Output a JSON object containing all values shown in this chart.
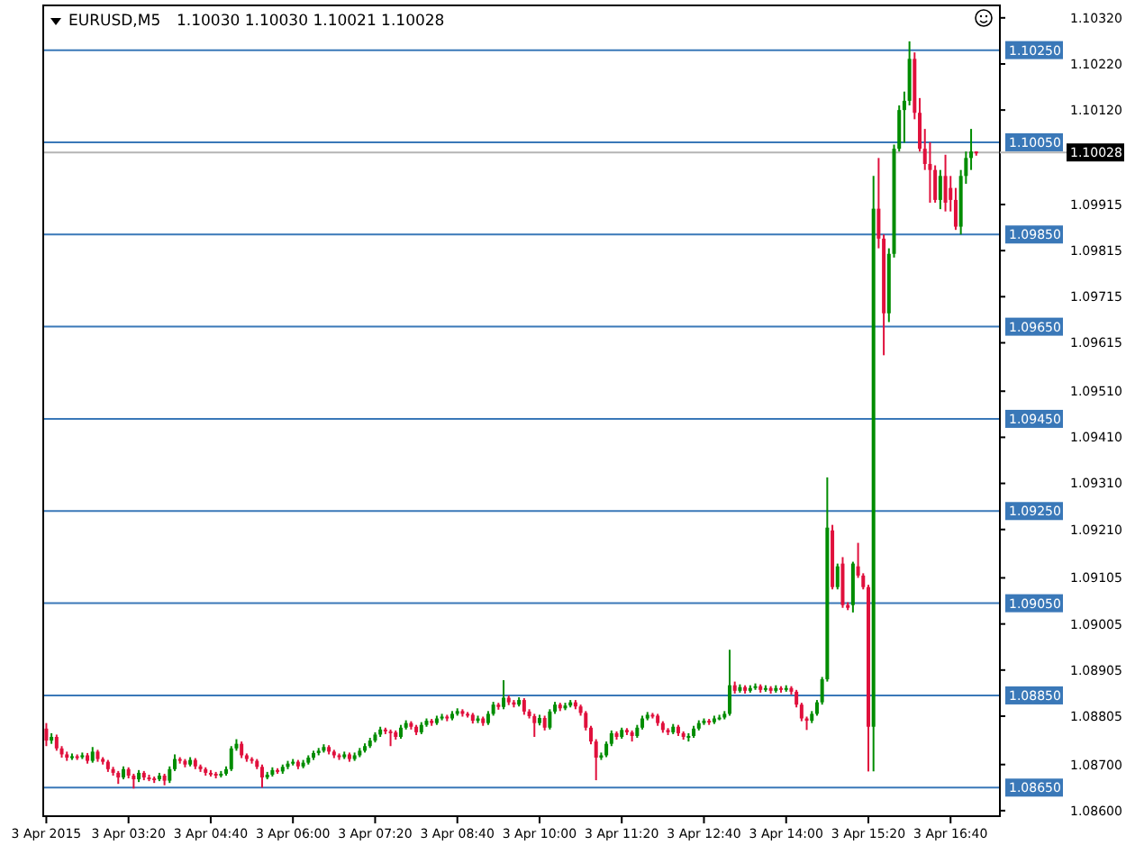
{
  "chart_data": {
    "type": "candlestick",
    "title": "EURUSD,M5",
    "subtitle": "1.10030 1.10030 1.10021 1.10028",
    "x": [
      "2015-04-03T02:00",
      "2015-04-03T02:05",
      "2015-04-03T02:10",
      "2015-04-03T02:15",
      "2015-04-03T02:20",
      "2015-04-03T02:25",
      "2015-04-03T02:30",
      "2015-04-03T02:35",
      "2015-04-03T02:40",
      "2015-04-03T02:45",
      "2015-04-03T02:50",
      "2015-04-03T02:55",
      "2015-04-03T03:00",
      "2015-04-03T03:05",
      "2015-04-03T03:10",
      "2015-04-03T03:15",
      "2015-04-03T03:20",
      "2015-04-03T03:25",
      "2015-04-03T03:30",
      "2015-04-03T03:35",
      "2015-04-03T03:40",
      "2015-04-03T03:45",
      "2015-04-03T03:50",
      "2015-04-03T03:55",
      "2015-04-03T04:00",
      "2015-04-03T04:05",
      "2015-04-03T04:10",
      "2015-04-03T04:15",
      "2015-04-03T04:20",
      "2015-04-03T04:25",
      "2015-04-03T04:30",
      "2015-04-03T04:35",
      "2015-04-03T04:40",
      "2015-04-03T04:45",
      "2015-04-03T04:50",
      "2015-04-03T04:55",
      "2015-04-03T05:00",
      "2015-04-03T05:05",
      "2015-04-03T05:10",
      "2015-04-03T05:15",
      "2015-04-03T05:20",
      "2015-04-03T05:25",
      "2015-04-03T05:30",
      "2015-04-03T05:35",
      "2015-04-03T05:40",
      "2015-04-03T05:45",
      "2015-04-03T05:50",
      "2015-04-03T05:55",
      "2015-04-03T06:00",
      "2015-04-03T06:05",
      "2015-04-03T06:10",
      "2015-04-03T06:15",
      "2015-04-03T06:20",
      "2015-04-03T06:25",
      "2015-04-03T06:30",
      "2015-04-03T06:35",
      "2015-04-03T06:40",
      "2015-04-03T06:45",
      "2015-04-03T06:50",
      "2015-04-03T06:55",
      "2015-04-03T07:00",
      "2015-04-03T07:05",
      "2015-04-03T07:10",
      "2015-04-03T07:15",
      "2015-04-03T07:20",
      "2015-04-03T07:25",
      "2015-04-03T07:30",
      "2015-04-03T07:35",
      "2015-04-03T07:40",
      "2015-04-03T07:45",
      "2015-04-03T07:50",
      "2015-04-03T07:55",
      "2015-04-03T08:00",
      "2015-04-03T08:05",
      "2015-04-03T08:10",
      "2015-04-03T08:15",
      "2015-04-03T08:20",
      "2015-04-03T08:25",
      "2015-04-03T08:30",
      "2015-04-03T08:35",
      "2015-04-03T08:40",
      "2015-04-03T08:45",
      "2015-04-03T08:50",
      "2015-04-03T08:55",
      "2015-04-03T09:00",
      "2015-04-03T09:05",
      "2015-04-03T09:10",
      "2015-04-03T09:15",
      "2015-04-03T09:20",
      "2015-04-03T09:25",
      "2015-04-03T09:30",
      "2015-04-03T09:35",
      "2015-04-03T09:40",
      "2015-04-03T09:45",
      "2015-04-03T09:50",
      "2015-04-03T09:55",
      "2015-04-03T10:00",
      "2015-04-03T10:05",
      "2015-04-03T10:10",
      "2015-04-03T10:15",
      "2015-04-03T10:20",
      "2015-04-03T10:25",
      "2015-04-03T10:30",
      "2015-04-03T10:35",
      "2015-04-03T10:40",
      "2015-04-03T10:45",
      "2015-04-03T10:50",
      "2015-04-03T10:55",
      "2015-04-03T11:00",
      "2015-04-03T11:05",
      "2015-04-03T11:10",
      "2015-04-03T11:15",
      "2015-04-03T11:20",
      "2015-04-03T11:25",
      "2015-04-03T11:30",
      "2015-04-03T11:35",
      "2015-04-03T11:40",
      "2015-04-03T11:45",
      "2015-04-03T11:50",
      "2015-04-03T11:55",
      "2015-04-03T12:00",
      "2015-04-03T12:05",
      "2015-04-03T12:10",
      "2015-04-03T12:15",
      "2015-04-03T12:20",
      "2015-04-03T12:25",
      "2015-04-03T12:30",
      "2015-04-03T12:35",
      "2015-04-03T12:40",
      "2015-04-03T12:45",
      "2015-04-03T12:50",
      "2015-04-03T12:55",
      "2015-04-03T13:00",
      "2015-04-03T13:05",
      "2015-04-03T13:10",
      "2015-04-03T13:15",
      "2015-04-03T13:20",
      "2015-04-03T13:25",
      "2015-04-03T13:30",
      "2015-04-03T13:35",
      "2015-04-03T13:40",
      "2015-04-03T13:45",
      "2015-04-03T13:50",
      "2015-04-03T13:55",
      "2015-04-03T14:00",
      "2015-04-03T14:05",
      "2015-04-03T14:10",
      "2015-04-03T14:15",
      "2015-04-03T14:20",
      "2015-04-03T14:25",
      "2015-04-03T14:30",
      "2015-04-03T14:35",
      "2015-04-03T14:40",
      "2015-04-03T14:45",
      "2015-04-03T14:50",
      "2015-04-03T14:55",
      "2015-04-03T15:00",
      "2015-04-03T15:05",
      "2015-04-03T15:10",
      "2015-04-03T15:15",
      "2015-04-03T15:20",
      "2015-04-03T15:25",
      "2015-04-03T15:30",
      "2015-04-03T15:35",
      "2015-04-03T15:40",
      "2015-04-03T15:45",
      "2015-04-03T15:50",
      "2015-04-03T15:55",
      "2015-04-03T16:00",
      "2015-04-03T16:05",
      "2015-04-03T16:10",
      "2015-04-03T16:15",
      "2015-04-03T16:20",
      "2015-04-03T16:25",
      "2015-04-03T16:30",
      "2015-04-03T16:35",
      "2015-04-03T16:40",
      "2015-04-03T16:45",
      "2015-04-03T16:50",
      "2015-04-03T16:55",
      "2015-04-03T17:00",
      "2015-04-03T17:05"
    ],
    "ohlc": [
      [
        1.08778,
        1.0879,
        1.0874,
        1.08752
      ],
      [
        1.08752,
        1.08768,
        1.08745,
        1.0876
      ],
      [
        1.0876,
        1.08765,
        1.0873,
        1.08735
      ],
      [
        1.08735,
        1.0874,
        1.08715,
        1.08722
      ],
      [
        1.08722,
        1.08728,
        1.08708,
        1.08715
      ],
      [
        1.08715,
        1.08724,
        1.0871,
        1.08718
      ],
      [
        1.08718,
        1.08722,
        1.0871,
        1.08716
      ],
      [
        1.08716,
        1.08726,
        1.08712,
        1.0872
      ],
      [
        1.0872,
        1.08725,
        1.08702,
        1.08708
      ],
      [
        1.08708,
        1.08738,
        1.08704,
        1.08728
      ],
      [
        1.08728,
        1.08732,
        1.08706,
        1.08712
      ],
      [
        1.08712,
        1.08716,
        1.087,
        1.08706
      ],
      [
        1.08706,
        1.0871,
        1.08684,
        1.0869
      ],
      [
        1.0869,
        1.08695,
        1.08676,
        1.08682
      ],
      [
        1.08682,
        1.08686,
        1.08658,
        1.08672
      ],
      [
        1.08672,
        1.08696,
        1.08668,
        1.0869
      ],
      [
        1.0869,
        1.08694,
        1.0867,
        1.08676
      ],
      [
        1.08676,
        1.0868,
        1.08648,
        1.08668
      ],
      [
        1.08668,
        1.08688,
        1.08662,
        1.08682
      ],
      [
        1.08682,
        1.08686,
        1.08666,
        1.08672
      ],
      [
        1.08672,
        1.08678,
        1.08664,
        1.0867
      ],
      [
        1.0867,
        1.08674,
        1.0866,
        1.08668
      ],
      [
        1.08668,
        1.08682,
        1.08664,
        1.08676
      ],
      [
        1.08676,
        1.0868,
        1.08655,
        1.08665
      ],
      [
        1.08665,
        1.08696,
        1.0866,
        1.0869
      ],
      [
        1.0869,
        1.08722,
        1.08686,
        1.08712
      ],
      [
        1.08712,
        1.08716,
        1.08702,
        1.08708
      ],
      [
        1.08708,
        1.08712,
        1.08694,
        1.087
      ],
      [
        1.087,
        1.08716,
        1.08696,
        1.0871
      ],
      [
        1.0871,
        1.08714,
        1.0869,
        1.08696
      ],
      [
        1.08696,
        1.087,
        1.08684,
        1.0869
      ],
      [
        1.0869,
        1.08694,
        1.08676,
        1.08682
      ],
      [
        1.08682,
        1.08688,
        1.08674,
        1.0868
      ],
      [
        1.0868,
        1.08684,
        1.0867,
        1.08676
      ],
      [
        1.08676,
        1.08686,
        1.08672,
        1.0868
      ],
      [
        1.0868,
        1.08696,
        1.08676,
        1.0869
      ],
      [
        1.0869,
        1.0874,
        1.08686,
        1.08735
      ],
      [
        1.08735,
        1.08755,
        1.0873,
        1.08745
      ],
      [
        1.08745,
        1.0875,
        1.08714,
        1.0872
      ],
      [
        1.0872,
        1.08724,
        1.08706,
        1.08712
      ],
      [
        1.08712,
        1.08716,
        1.08702,
        1.08708
      ],
      [
        1.08708,
        1.08712,
        1.0869,
        1.08695
      ],
      [
        1.08695,
        1.087,
        1.0865,
        1.08672
      ],
      [
        1.08672,
        1.08684,
        1.08668,
        1.08678
      ],
      [
        1.08678,
        1.08694,
        1.08674,
        1.08688
      ],
      [
        1.08688,
        1.08692,
        1.0868,
        1.08685
      ],
      [
        1.08685,
        1.087,
        1.0868,
        1.08695
      ],
      [
        1.08695,
        1.08708,
        1.0869,
        1.08702
      ],
      [
        1.08702,
        1.08712,
        1.08698,
        1.08706
      ],
      [
        1.08706,
        1.0871,
        1.0869,
        1.08696
      ],
      [
        1.08696,
        1.0871,
        1.08692,
        1.08704
      ],
      [
        1.08704,
        1.0872,
        1.087,
        1.08715
      ],
      [
        1.08715,
        1.0873,
        1.0871,
        1.08725
      ],
      [
        1.08725,
        1.08736,
        1.0872,
        1.0873
      ],
      [
        1.0873,
        1.08744,
        1.08726,
        1.08738
      ],
      [
        1.08738,
        1.08742,
        1.08722,
        1.08728
      ],
      [
        1.08728,
        1.08732,
        1.08714,
        1.0872
      ],
      [
        1.0872,
        1.08724,
        1.0871,
        1.08716
      ],
      [
        1.08716,
        1.08728,
        1.08712,
        1.08722
      ],
      [
        1.08722,
        1.08726,
        1.08706,
        1.08712
      ],
      [
        1.08712,
        1.08726,
        1.08708,
        1.0872
      ],
      [
        1.0872,
        1.08736,
        1.08716,
        1.0873
      ],
      [
        1.0873,
        1.08746,
        1.08726,
        1.0874
      ],
      [
        1.0874,
        1.08758,
        1.08736,
        1.08752
      ],
      [
        1.08752,
        1.0877,
        1.08748,
        1.08765
      ],
      [
        1.08765,
        1.08782,
        1.0876,
        1.08776
      ],
      [
        1.08776,
        1.0878,
        1.08766,
        1.08772
      ],
      [
        1.08772,
        1.08776,
        1.0874,
        1.0877
      ],
      [
        1.0877,
        1.08774,
        1.08754,
        1.0876
      ],
      [
        1.0876,
        1.08786,
        1.08756,
        1.0878
      ],
      [
        1.0878,
        1.08796,
        1.08776,
        1.0879
      ],
      [
        1.0879,
        1.08794,
        1.08776,
        1.08782
      ],
      [
        1.08782,
        1.08786,
        1.08764,
        1.0877
      ],
      [
        1.0877,
        1.08792,
        1.08766,
        1.08786
      ],
      [
        1.08786,
        1.088,
        1.08782,
        1.08795
      ],
      [
        1.08795,
        1.08799,
        1.08784,
        1.0879
      ],
      [
        1.0879,
        1.08806,
        1.08786,
        1.088
      ],
      [
        1.088,
        1.0881,
        1.08796,
        1.08804
      ],
      [
        1.08804,
        1.08808,
        1.08794,
        1.088
      ],
      [
        1.088,
        1.08816,
        1.08796,
        1.0881
      ],
      [
        1.0881,
        1.08822,
        1.08806,
        1.08816
      ],
      [
        1.08816,
        1.0882,
        1.08804,
        1.0881
      ],
      [
        1.0881,
        1.08814,
        1.08802,
        1.08808
      ],
      [
        1.08808,
        1.08812,
        1.08789,
        1.08795
      ],
      [
        1.08795,
        1.08806,
        1.0879,
        1.088
      ],
      [
        1.088,
        1.08804,
        1.08784,
        1.0879
      ],
      [
        1.0879,
        1.08816,
        1.08786,
        1.0881
      ],
      [
        1.0881,
        1.08836,
        1.08806,
        1.0883
      ],
      [
        1.0883,
        1.08834,
        1.08819,
        1.08825
      ],
      [
        1.08825,
        1.08883,
        1.0882,
        1.08845
      ],
      [
        1.08845,
        1.0885,
        1.08829,
        1.08835
      ],
      [
        1.08835,
        1.0884,
        1.08824,
        1.0883
      ],
      [
        1.0883,
        1.08846,
        1.08826,
        1.0884
      ],
      [
        1.0884,
        1.08844,
        1.08808,
        1.08815
      ],
      [
        1.08815,
        1.0882,
        1.088,
        1.08805
      ],
      [
        1.08805,
        1.0881,
        1.0876,
        1.0879
      ],
      [
        1.0879,
        1.08808,
        1.08785,
        1.08801
      ],
      [
        1.08801,
        1.08806,
        1.08774,
        1.0878
      ],
      [
        1.0878,
        1.0882,
        1.08776,
        1.08815
      ],
      [
        1.08815,
        1.08836,
        1.0881,
        1.0883
      ],
      [
        1.0883,
        1.08834,
        1.08816,
        1.08822
      ],
      [
        1.08822,
        1.08834,
        1.08818,
        1.08828
      ],
      [
        1.08828,
        1.0884,
        1.08824,
        1.08835
      ],
      [
        1.08835,
        1.0884,
        1.0882,
        1.08826
      ],
      [
        1.08826,
        1.0883,
        1.08806,
        1.08812
      ],
      [
        1.08812,
        1.08816,
        1.08774,
        1.0878
      ],
      [
        1.0878,
        1.08784,
        1.08744,
        1.0875
      ],
      [
        1.0875,
        1.08755,
        1.08666,
        1.08715
      ],
      [
        1.08715,
        1.08726,
        1.0871,
        1.0872
      ],
      [
        1.0872,
        1.0875,
        1.08716,
        1.08745
      ],
      [
        1.08745,
        1.08774,
        1.0874,
        1.08768
      ],
      [
        1.08768,
        1.08772,
        1.08754,
        1.0876
      ],
      [
        1.0876,
        1.0878,
        1.08756,
        1.08775
      ],
      [
        1.08775,
        1.08779,
        1.08764,
        1.0877
      ],
      [
        1.0877,
        1.08774,
        1.0875,
        1.08762
      ],
      [
        1.08762,
        1.08786,
        1.08758,
        1.0878
      ],
      [
        1.0878,
        1.08806,
        1.08776,
        1.088
      ],
      [
        1.088,
        1.08814,
        1.08796,
        1.08808
      ],
      [
        1.08808,
        1.08812,
        1.088,
        1.08806
      ],
      [
        1.08806,
        1.0881,
        1.08784,
        1.0879
      ],
      [
        1.0879,
        1.08794,
        1.08769,
        1.08775
      ],
      [
        1.08775,
        1.08779,
        1.08764,
        1.0877
      ],
      [
        1.0877,
        1.08788,
        1.08766,
        1.08782
      ],
      [
        1.08782,
        1.08786,
        1.08762,
        1.08768
      ],
      [
        1.08768,
        1.08772,
        1.08754,
        1.0876
      ],
      [
        1.0876,
        1.08768,
        1.0875,
        1.08762
      ],
      [
        1.08762,
        1.08784,
        1.08758,
        1.08778
      ],
      [
        1.08778,
        1.08796,
        1.08774,
        1.0879
      ],
      [
        1.0879,
        1.088,
        1.08786,
        1.08795
      ],
      [
        1.08795,
        1.08799,
        1.08786,
        1.08792
      ],
      [
        1.08792,
        1.08806,
        1.08788,
        1.088
      ],
      [
        1.088,
        1.08808,
        1.08796,
        1.08802
      ],
      [
        1.08802,
        1.08816,
        1.08798,
        1.0881
      ],
      [
        1.0881,
        1.08949,
        1.08806,
        1.08872
      ],
      [
        1.08872,
        1.0888,
        1.08854,
        1.0886
      ],
      [
        1.0886,
        1.08874,
        1.08856,
        1.08868
      ],
      [
        1.08868,
        1.08872,
        1.08854,
        1.0886
      ],
      [
        1.0886,
        1.08872,
        1.08856,
        1.08866
      ],
      [
        1.08866,
        1.08876,
        1.08862,
        1.0887
      ],
      [
        1.0887,
        1.08874,
        1.08856,
        1.08862
      ],
      [
        1.08862,
        1.08872,
        1.08858,
        1.08866
      ],
      [
        1.08866,
        1.0887,
        1.08854,
        1.0886
      ],
      [
        1.0886,
        1.08872,
        1.08856,
        1.08866
      ],
      [
        1.08866,
        1.0887,
        1.08856,
        1.08862
      ],
      [
        1.08862,
        1.08872,
        1.08858,
        1.08866
      ],
      [
        1.08866,
        1.0887,
        1.08852,
        1.08858
      ],
      [
        1.08858,
        1.08862,
        1.08824,
        1.0883
      ],
      [
        1.0883,
        1.08834,
        1.08794,
        1.088
      ],
      [
        1.088,
        1.08804,
        1.08775,
        1.08795
      ],
      [
        1.08795,
        1.08816,
        1.0879,
        1.0881
      ],
      [
        1.0881,
        1.0884,
        1.08806,
        1.08835
      ],
      [
        1.08835,
        1.0889,
        1.0883,
        1.08885
      ],
      [
        1.08885,
        1.09323,
        1.0888,
        1.09214
      ],
      [
        1.09208,
        1.0922,
        1.0908,
        1.09085
      ],
      [
        1.09085,
        1.09136,
        1.0908,
        1.0913
      ],
      [
        1.09136,
        1.0915,
        1.0904,
        1.09046
      ],
      [
        1.09046,
        1.09052,
        1.09035,
        1.0904
      ],
      [
        1.09046,
        1.0914,
        1.0903,
        1.09136
      ],
      [
        1.0913,
        1.09181,
        1.09105,
        1.0911
      ],
      [
        1.0911,
        1.09115,
        1.0908,
        1.09085
      ],
      [
        1.09085,
        1.0909,
        1.08685,
        1.08782
      ],
      [
        1.08782,
        1.09977,
        1.08685,
        1.09906
      ],
      [
        1.09906,
        1.10016,
        1.0982,
        1.09841
      ],
      [
        1.09841,
        1.0985,
        1.09588,
        1.09679
      ],
      [
        1.09679,
        1.0982,
        1.0966,
        1.09808
      ],
      [
        1.09808,
        1.10045,
        1.098,
        1.10036
      ],
      [
        1.10036,
        1.1013,
        1.1003,
        1.1012
      ],
      [
        1.1012,
        1.1016,
        1.10049,
        1.1014
      ],
      [
        1.1014,
        1.10269,
        1.1013,
        1.10231
      ],
      [
        1.10231,
        1.10245,
        1.101,
        1.10114
      ],
      [
        1.10114,
        1.10146,
        1.1003,
        1.10036
      ],
      [
        1.10036,
        1.10079,
        1.0999,
        1.10003
      ],
      [
        1.10003,
        1.1005,
        1.09919,
        1.0999
      ],
      [
        1.0999,
        1.1,
        1.09919,
        1.09925
      ],
      [
        1.09925,
        1.0999,
        1.09905,
        1.09977
      ],
      [
        1.09977,
        1.10023,
        1.099,
        1.09919
      ],
      [
        1.09951,
        1.09977,
        1.099,
        1.09925
      ],
      [
        1.09925,
        1.09951,
        1.0986,
        1.09867
      ],
      [
        1.09867,
        1.0999,
        1.0985,
        1.09977
      ],
      [
        1.09977,
        1.1003,
        1.0996,
        1.10016
      ],
      [
        1.10016,
        1.10079,
        1.0999,
        1.1003
      ],
      [
        1.1003,
        1.1003,
        1.10021,
        1.10028
      ]
    ],
    "xlim": [
      "2015-04-03T01:57",
      "2015-04-03T17:28"
    ],
    "xticks": [
      {
        "value": "2015-04-03T02:00",
        "label": "3 Apr 2015"
      },
      {
        "value": "2015-04-03T03:20",
        "label": "3 Apr 03:20"
      },
      {
        "value": "2015-04-03T04:40",
        "label": "3 Apr 04:40"
      },
      {
        "value": "2015-04-03T06:00",
        "label": "3 Apr 06:00"
      },
      {
        "value": "2015-04-03T07:20",
        "label": "3 Apr 07:20"
      },
      {
        "value": "2015-04-03T08:40",
        "label": "3 Apr 08:40"
      },
      {
        "value": "2015-04-03T10:00",
        "label": "3 Apr 10:00"
      },
      {
        "value": "2015-04-03T11:20",
        "label": "3 Apr 11:20"
      },
      {
        "value": "2015-04-03T12:40",
        "label": "3 Apr 12:40"
      },
      {
        "value": "2015-04-03T14:00",
        "label": "3 Apr 14:00"
      },
      {
        "value": "2015-04-03T15:20",
        "label": "3 Apr 15:20"
      },
      {
        "value": "2015-04-03T16:40",
        "label": "3 Apr 16:40"
      }
    ],
    "ylim": [
      1.08588,
      1.10347
    ],
    "yticks": [
      {
        "value": 1.1032,
        "label": "1.10320"
      },
      {
        "value": 1.1022,
        "label": "1.10220"
      },
      {
        "value": 1.1012,
        "label": "1.10120"
      },
      {
        "value": 1.09915,
        "label": "1.09915"
      },
      {
        "value": 1.09815,
        "label": "1.09815"
      },
      {
        "value": 1.09715,
        "label": "1.09715"
      },
      {
        "value": 1.09615,
        "label": "1.09615"
      },
      {
        "value": 1.0951,
        "label": "1.09510"
      },
      {
        "value": 1.0941,
        "label": "1.09410"
      },
      {
        "value": 1.0931,
        "label": "1.09310"
      },
      {
        "value": 1.0921,
        "label": "1.09210"
      },
      {
        "value": 1.09105,
        "label": "1.09105"
      },
      {
        "value": 1.09005,
        "label": "1.09005"
      },
      {
        "value": 1.08905,
        "label": "1.08905"
      },
      {
        "value": 1.08805,
        "label": "1.08805"
      },
      {
        "value": 1.087,
        "label": "1.08700"
      },
      {
        "value": 1.086,
        "label": "1.08600"
      }
    ],
    "ref_lines": [
      {
        "axis": "y",
        "value": 1.1025,
        "label": "1.10250",
        "color": "#3a78b8"
      },
      {
        "axis": "y",
        "value": 1.1005,
        "label": "1.10050",
        "color": "#3a78b8"
      },
      {
        "axis": "y",
        "value": 1.10028,
        "label": "1.10028",
        "color": "#b4b4b4"
      },
      {
        "axis": "y",
        "value": 1.0985,
        "label": "1.09850",
        "color": "#3a78b8"
      },
      {
        "axis": "y",
        "value": 1.0965,
        "label": "1.09650",
        "color": "#3a78b8"
      },
      {
        "axis": "y",
        "value": 1.0945,
        "label": "1.09450",
        "color": "#3a78b8"
      },
      {
        "axis": "y",
        "value": 1.0925,
        "label": "1.09250",
        "color": "#3a78b8"
      },
      {
        "axis": "y",
        "value": 1.0905,
        "label": "1.09050",
        "color": "#3a78b8"
      },
      {
        "axis": "y",
        "value": 1.0885,
        "label": "1.08850",
        "color": "#3a78b8"
      },
      {
        "axis": "y",
        "value": 1.0865,
        "label": "1.08650",
        "color": "#3a78b8"
      }
    ],
    "grid": false
  }
}
